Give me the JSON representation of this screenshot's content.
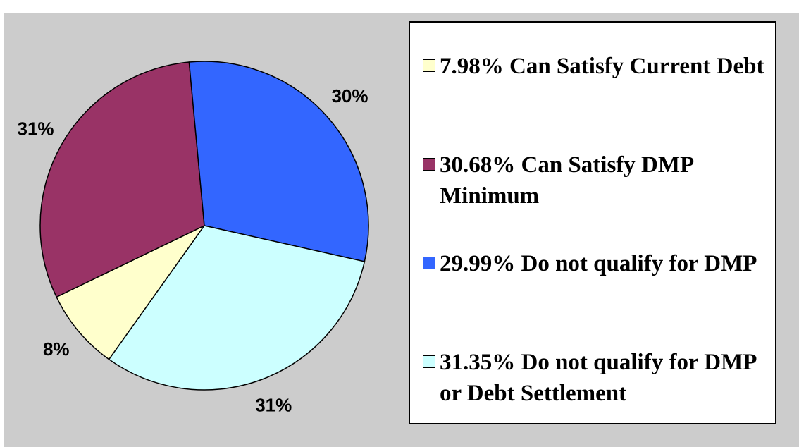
{
  "chart_data": {
    "type": "pie",
    "categories": [
      "7.98% Can Satisfy Current Debt",
      "30.68% Can Satisfy DMP Minimum",
      "29.99% Do not qualify for DMP",
      "31.35% Do not qualify for DMP or Debt Settlement"
    ],
    "values": [
      7.98,
      30.68,
      29.99,
      31.35
    ],
    "value_labels": [
      "8%",
      "31%",
      "30%",
      "31%"
    ],
    "colors": [
      "#ffffcc",
      "#993366",
      "#3366ff",
      "#ccffff"
    ],
    "legend": "right"
  }
}
